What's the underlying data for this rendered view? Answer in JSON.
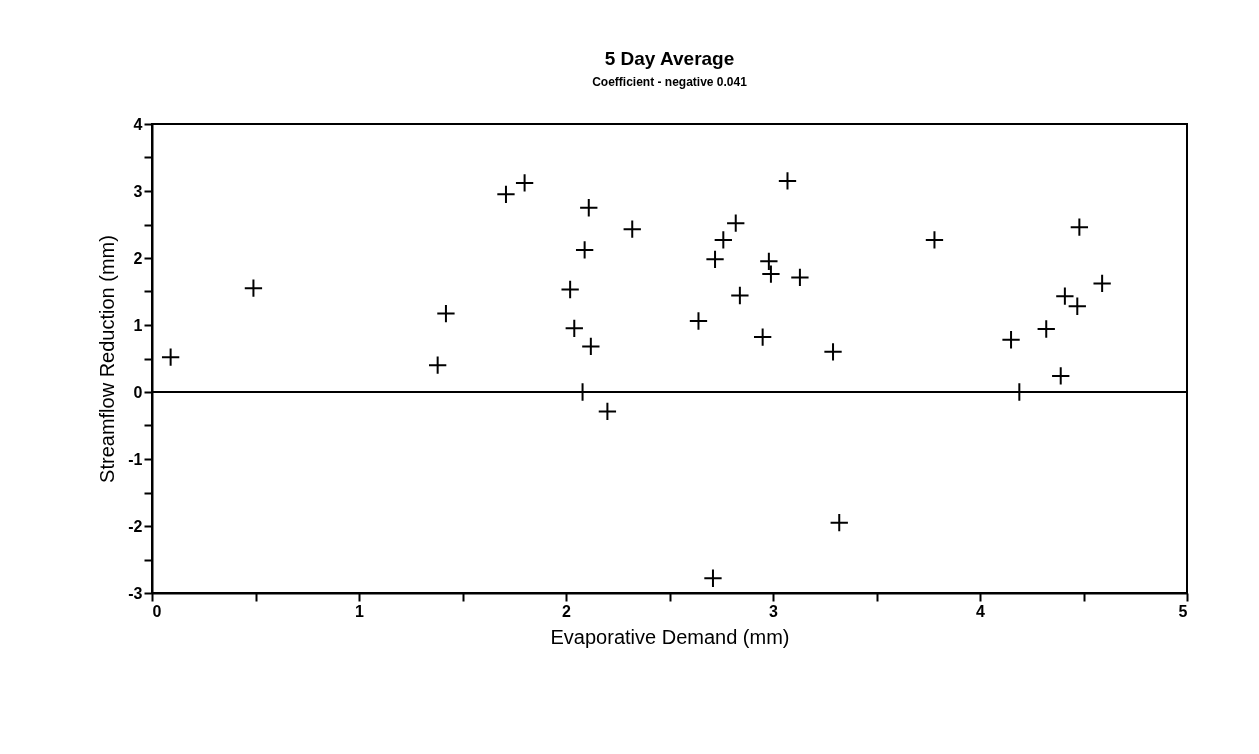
{
  "chart_data": {
    "type": "scatter",
    "title": "5 Day Average",
    "subtitle": "Coefficient - negative 0.041",
    "xlabel": "Evaporative Demand (mm)",
    "ylabel": "Streamflow Reduction (mm)",
    "x": [
      0.09,
      0.49,
      1.42,
      1.38,
      1.71,
      1.8,
      2.11,
      2.32,
      2.09,
      2.02,
      2.04,
      2.12,
      2.08,
      2.2,
      3.07,
      2.82,
      2.76,
      2.72,
      2.98,
      2.99,
      3.13,
      2.84,
      2.64,
      2.95,
      3.29,
      3.78,
      4.48,
      4.59,
      4.41,
      4.47,
      4.32,
      4.15,
      4.39,
      4.19,
      3.32,
      2.71
    ],
    "values": [
      0.52,
      1.55,
      1.17,
      0.4,
      2.95,
      3.12,
      2.75,
      2.43,
      2.12,
      1.53,
      0.95,
      0.68,
      0,
      -0.29,
      3.15,
      2.52,
      2.27,
      1.98,
      1.95,
      1.76,
      1.71,
      1.44,
      1.06,
      0.82,
      0.6,
      2.27,
      2.46,
      1.62,
      1.43,
      1.28,
      0.94,
      0.78,
      0.24,
      0,
      -1.95,
      -2.78
    ],
    "color": "#000000",
    "marker": "cross",
    "xlim": [
      0,
      5
    ],
    "xticks": [
      0,
      {
        "value": 0.5,
        "label": null
      },
      1,
      {
        "value": 1.5,
        "label": null
      },
      2,
      {
        "value": 2.5,
        "label": null
      },
      3,
      {
        "value": 3.5,
        "label": null
      },
      4,
      {
        "value": 4.5,
        "label": null
      },
      5
    ],
    "ylim": [
      -3,
      4
    ],
    "yticks": [
      -3,
      {
        "value": -2.5,
        "label": null
      },
      -2,
      {
        "value": -1.5,
        "label": null
      },
      -1,
      {
        "value": -0.5,
        "label": null
      },
      0,
      {
        "value": 0.5,
        "label": null
      },
      1,
      {
        "value": 1.5,
        "label": null
      },
      2,
      {
        "value": 2.5,
        "label": null
      },
      3,
      {
        "value": 3.5,
        "label": null
      },
      4
    ],
    "ref_lines": [
      {
        "axis": "y",
        "value": 0
      }
    ],
    "grid": false
  }
}
